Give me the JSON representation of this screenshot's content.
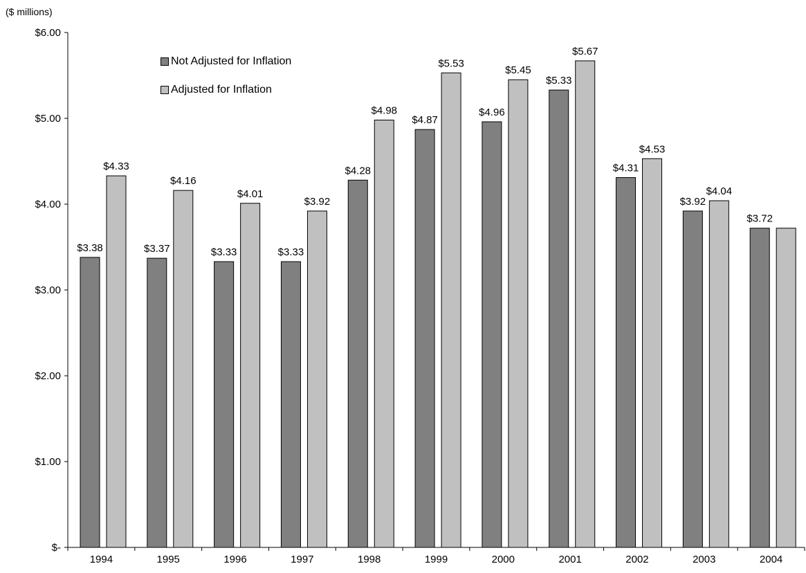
{
  "chart_data": {
    "type": "bar",
    "unit_label": "($ millions)",
    "categories": [
      "1994",
      "1995",
      "1996",
      "1997",
      "1998",
      "1999",
      "2000",
      "2001",
      "2002",
      "2003",
      "2004"
    ],
    "series": [
      {
        "name": "Not Adjusted for Inflation",
        "color": "#808080",
        "values": [
          3.38,
          3.37,
          3.33,
          3.33,
          4.28,
          4.87,
          4.96,
          5.33,
          4.31,
          3.92,
          3.72
        ],
        "labels": [
          "$3.38",
          "$3.37",
          "$3.33",
          "$3.33",
          "$4.28",
          "$4.87",
          "$4.96",
          "$5.33",
          "$4.31",
          "$3.92",
          "$3.72"
        ]
      },
      {
        "name": "Adjusted for Inflation",
        "color": "#c0c0c0",
        "values": [
          4.33,
          4.16,
          4.01,
          3.92,
          4.98,
          5.53,
          5.45,
          5.67,
          4.53,
          4.04,
          3.72
        ],
        "labels": [
          "$4.33",
          "$4.16",
          "$4.01",
          "$3.92",
          "$4.98",
          "$5.53",
          "$5.45",
          "$5.67",
          "$4.53",
          "$4.04",
          ""
        ]
      }
    ],
    "ylim": [
      0,
      6
    ],
    "y_ticks": [
      {
        "value": 0,
        "label": "$-"
      },
      {
        "value": 1,
        "label": "$1.00"
      },
      {
        "value": 2,
        "label": "$2.00"
      },
      {
        "value": 3,
        "label": "$3.00"
      },
      {
        "value": 4,
        "label": "$4.00"
      },
      {
        "value": 5,
        "label": "$5.00"
      },
      {
        "value": 6,
        "label": "$6.00"
      }
    ],
    "legend_position": "top-left",
    "grid": false
  }
}
